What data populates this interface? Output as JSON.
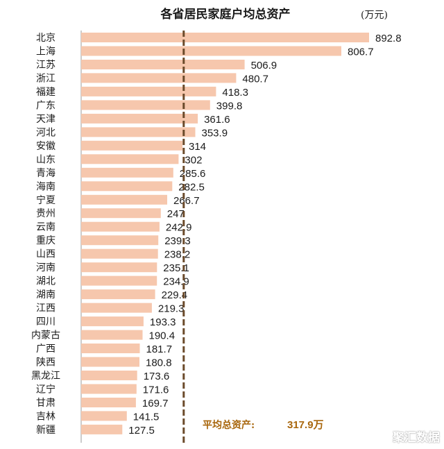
{
  "chart_data": {
    "type": "bar",
    "orientation": "horizontal",
    "title": "各省居民家庭户均总资产",
    "unit": "(万元)",
    "categories": [
      "北京",
      "上海",
      "江苏",
      "浙江",
      "福建",
      "广东",
      "天津",
      "河北",
      "安徽",
      "山东",
      "青海",
      "海南",
      "宁夏",
      "贵州",
      "云南",
      "重庆",
      "山西",
      "河南",
      "湖北",
      "湖南",
      "江西",
      "四川",
      "内蒙古",
      "广西",
      "陕西",
      "黑龙江",
      "辽宁",
      "甘肃",
      "吉林",
      "新疆"
    ],
    "values": [
      892.8,
      806.7,
      506.9,
      480.7,
      418.3,
      399.8,
      361.6,
      353.9,
      314,
      302,
      285.6,
      282.5,
      266.7,
      247,
      242.9,
      239.3,
      238.2,
      235.1,
      234.9,
      229.4,
      219.3,
      193.3,
      190.4,
      181.7,
      180.8,
      173.6,
      171.6,
      169.7,
      141.5,
      127.5
    ],
    "value_labels": [
      "892.8",
      "806.7",
      "506.9",
      "480.7",
      "418.3",
      "399.8",
      "361.6",
      "353.9",
      "314",
      "302",
      "285.6",
      "282.5",
      "266.7",
      "247",
      "242.9",
      "239.3",
      "238.2",
      "235.1",
      "234.9",
      "229.4",
      "219.3",
      "193.3",
      "190.4",
      "181.7",
      "180.8",
      "173.6",
      "171.6",
      "169.7",
      "141.5",
      "127.5"
    ],
    "average": {
      "label": "平均总资产:",
      "value": 317.9,
      "value_text": "317.9万"
    },
    "xlim": [
      0,
      892.8
    ],
    "grid": false,
    "colors": {
      "bar": "#f6c7ad",
      "average_line": "#6b4a2a",
      "average_text": "#a8660c"
    }
  },
  "watermark": "聚汇数据"
}
